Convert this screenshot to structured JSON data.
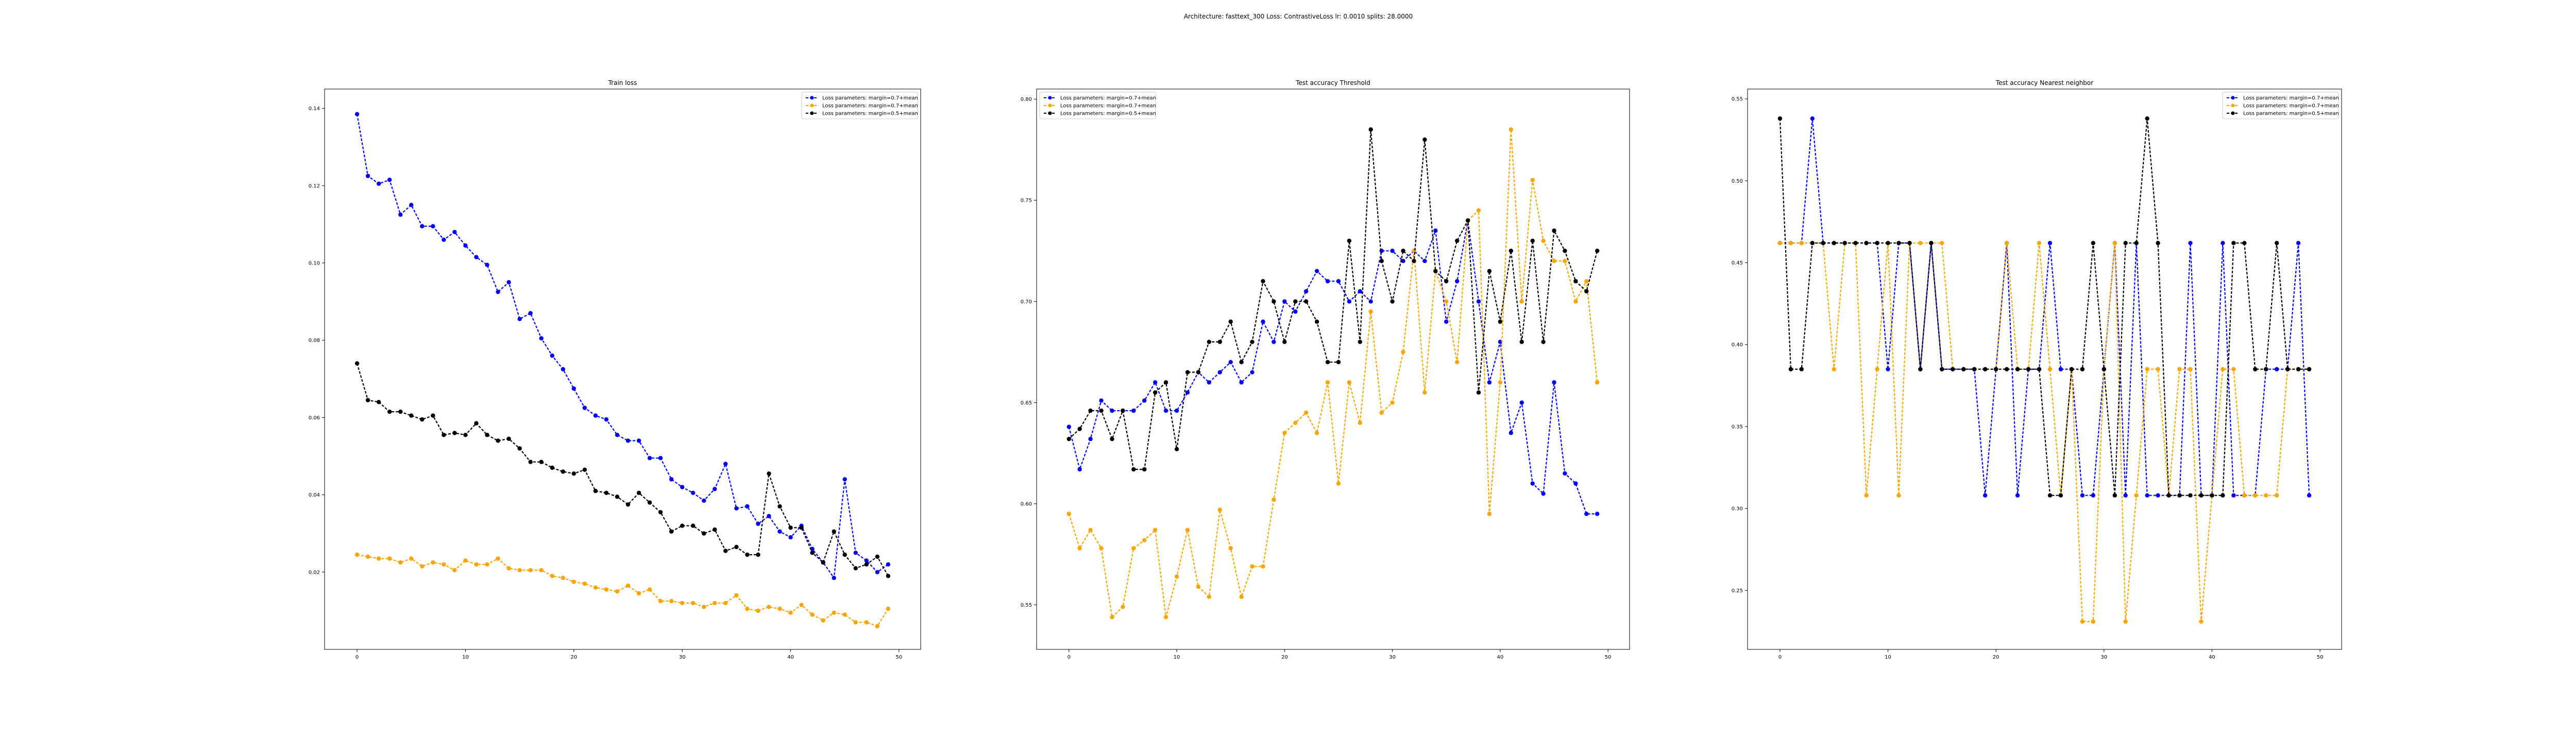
{
  "suptitle": "Architecture: fasttext_300 Loss: ContrastiveLoss lr: 0.0010 splits: 28.0000",
  "colors": {
    "blue": "#0000ff",
    "orange": "#ffa500",
    "black": "#000000"
  },
  "legend_labels": [
    "Loss parameters: margin=0.7+mean",
    "Loss parameters: margin=0.7+mean",
    "Loss parameters: margin=0.5+mean"
  ],
  "chart_data": [
    {
      "type": "line",
      "title": "Train loss",
      "xlabel": "",
      "ylabel": "",
      "xlim": [
        -3,
        52
      ],
      "ylim": [
        0.0,
        0.145
      ],
      "xticks": [
        0,
        10,
        20,
        30,
        40,
        50
      ],
      "yticks": [
        0.02,
        0.04,
        0.06,
        0.08,
        0.1,
        0.12,
        0.14
      ],
      "ytick_labels": [
        "0.02",
        "0.04",
        "0.06",
        "0.08",
        "0.10",
        "0.12",
        "0.14"
      ],
      "legend_position": "upper right",
      "x": [
        0,
        1,
        2,
        3,
        4,
        5,
        6,
        7,
        8,
        9,
        10,
        11,
        12,
        13,
        14,
        15,
        16,
        17,
        18,
        19,
        20,
        21,
        22,
        23,
        24,
        25,
        26,
        27,
        28,
        29,
        30,
        31,
        32,
        33,
        34,
        35,
        36,
        37,
        38,
        39,
        40,
        41,
        42,
        43,
        44,
        45,
        46,
        47,
        48,
        49
      ],
      "series": [
        {
          "color": "blue",
          "values": [
            0.1385,
            0.1225,
            0.1205,
            0.1215,
            0.1125,
            0.115,
            0.1095,
            0.1095,
            0.106,
            0.108,
            0.1045,
            0.1015,
            0.0995,
            0.0925,
            0.095,
            0.0855,
            0.087,
            0.0805,
            0.076,
            0.0725,
            0.0675,
            0.0625,
            0.0605,
            0.0595,
            0.0555,
            0.054,
            0.054,
            0.0495,
            0.0495,
            0.044,
            0.042,
            0.0405,
            0.0385,
            0.0415,
            0.048,
            0.0365,
            0.037,
            0.0325,
            0.0345,
            0.0305,
            0.029,
            0.032,
            0.026,
            0.0225,
            0.0185,
            0.044,
            0.025,
            0.023,
            0.02,
            0.022
          ]
        },
        {
          "color": "orange",
          "values": [
            0.0245,
            0.024,
            0.0235,
            0.0235,
            0.0225,
            0.0235,
            0.0215,
            0.0225,
            0.022,
            0.0205,
            0.023,
            0.022,
            0.022,
            0.0235,
            0.021,
            0.0205,
            0.0205,
            0.0205,
            0.019,
            0.0185,
            0.0175,
            0.017,
            0.016,
            0.0155,
            0.015,
            0.0165,
            0.0145,
            0.0155,
            0.0125,
            0.0125,
            0.012,
            0.012,
            0.011,
            0.012,
            0.012,
            0.014,
            0.0105,
            0.01,
            0.011,
            0.0105,
            0.0095,
            0.0115,
            0.009,
            0.0075,
            0.0095,
            0.009,
            0.007,
            0.007,
            0.006,
            0.0105
          ]
        },
        {
          "color": "black",
          "values": [
            0.074,
            0.0645,
            0.064,
            0.0615,
            0.0615,
            0.0605,
            0.0595,
            0.0605,
            0.0555,
            0.056,
            0.0555,
            0.0585,
            0.0555,
            0.054,
            0.0545,
            0.052,
            0.0485,
            0.0485,
            0.047,
            0.046,
            0.0455,
            0.0465,
            0.041,
            0.0405,
            0.0395,
            0.0375,
            0.0405,
            0.038,
            0.0355,
            0.0305,
            0.032,
            0.032,
            0.03,
            0.031,
            0.0255,
            0.0265,
            0.0245,
            0.0245,
            0.0455,
            0.037,
            0.0315,
            0.0315,
            0.025,
            0.0225,
            0.0305,
            0.0245,
            0.021,
            0.022,
            0.024,
            0.019
          ]
        }
      ]
    },
    {
      "type": "line",
      "title": "Test accuracy Threshold",
      "xlabel": "",
      "ylabel": "",
      "xlim": [
        -3,
        52
      ],
      "ylim": [
        0.528,
        0.805
      ],
      "xticks": [
        0,
        10,
        20,
        30,
        40,
        50
      ],
      "yticks": [
        0.55,
        0.6,
        0.65,
        0.7,
        0.75,
        0.8
      ],
      "ytick_labels": [
        "0.55",
        "0.60",
        "0.65",
        "0.70",
        "0.75",
        "0.80"
      ],
      "legend_position": "upper left",
      "x": [
        0,
        1,
        2,
        3,
        4,
        5,
        6,
        7,
        8,
        9,
        10,
        11,
        12,
        13,
        14,
        15,
        16,
        17,
        18,
        19,
        20,
        21,
        22,
        23,
        24,
        25,
        26,
        27,
        28,
        29,
        30,
        31,
        32,
        33,
        34,
        35,
        36,
        37,
        38,
        39,
        40,
        41,
        42,
        43,
        44,
        45,
        46,
        47,
        48,
        49
      ],
      "series": [
        {
          "color": "blue",
          "values": [
            0.638,
            0.617,
            0.632,
            0.651,
            0.646,
            0.646,
            0.646,
            0.651,
            0.66,
            0.646,
            0.646,
            0.655,
            0.665,
            0.66,
            0.665,
            0.67,
            0.66,
            0.665,
            0.69,
            0.68,
            0.7,
            0.695,
            0.705,
            0.715,
            0.71,
            0.71,
            0.7,
            0.705,
            0.7,
            0.725,
            0.725,
            0.72,
            0.725,
            0.72,
            0.735,
            0.69,
            0.71,
            0.74,
            0.7,
            0.66,
            0.68,
            0.635,
            0.65,
            0.61,
            0.605,
            0.66,
            0.615,
            0.61,
            0.595,
            0.595
          ]
        },
        {
          "color": "orange",
          "values": [
            0.595,
            0.578,
            0.587,
            0.578,
            0.544,
            0.549,
            0.578,
            0.582,
            0.587,
            0.544,
            0.564,
            0.587,
            0.559,
            0.554,
            0.597,
            0.578,
            0.554,
            0.569,
            0.569,
            0.602,
            0.635,
            0.64,
            0.645,
            0.635,
            0.66,
            0.61,
            0.66,
            0.64,
            0.695,
            0.645,
            0.65,
            0.675,
            0.725,
            0.655,
            0.715,
            0.7,
            0.67,
            0.74,
            0.745,
            0.595,
            0.66,
            0.785,
            0.7,
            0.76,
            0.73,
            0.72,
            0.72,
            0.7,
            0.71,
            0.66
          ]
        },
        {
          "color": "black",
          "values": [
            0.632,
            0.637,
            0.646,
            0.646,
            0.632,
            0.646,
            0.617,
            0.617,
            0.655,
            0.66,
            0.627,
            0.665,
            0.665,
            0.68,
            0.68,
            0.69,
            0.67,
            0.68,
            0.71,
            0.7,
            0.68,
            0.7,
            0.7,
            0.69,
            0.67,
            0.67,
            0.73,
            0.68,
            0.785,
            0.72,
            0.7,
            0.725,
            0.72,
            0.78,
            0.715,
            0.71,
            0.73,
            0.74,
            0.655,
            0.715,
            0.69,
            0.725,
            0.68,
            0.73,
            0.68,
            0.735,
            0.725,
            0.71,
            0.705,
            0.725
          ]
        }
      ]
    },
    {
      "type": "line",
      "title": "Test accuracy Nearest neighbor",
      "xlabel": "",
      "ylabel": "",
      "xlim": [
        -3,
        52
      ],
      "ylim": [
        0.214,
        0.556
      ],
      "xticks": [
        0,
        10,
        20,
        30,
        40,
        50
      ],
      "yticks": [
        0.25,
        0.3,
        0.35,
        0.4,
        0.45,
        0.5,
        0.55
      ],
      "ytick_labels": [
        "0.25",
        "0.30",
        "0.35",
        "0.40",
        "0.45",
        "0.50",
        "0.55"
      ],
      "legend_position": "upper right",
      "x": [
        0,
        1,
        2,
        3,
        4,
        5,
        6,
        7,
        8,
        9,
        10,
        11,
        12,
        13,
        14,
        15,
        16,
        17,
        18,
        19,
        20,
        21,
        22,
        23,
        24,
        25,
        26,
        27,
        28,
        29,
        30,
        31,
        32,
        33,
        34,
        35,
        36,
        37,
        38,
        39,
        40,
        41,
        42,
        43,
        44,
        45,
        46,
        47,
        48,
        49
      ],
      "series": [
        {
          "color": "blue",
          "values": [
            0.462,
            0.462,
            0.462,
            0.538,
            0.462,
            0.462,
            0.462,
            0.462,
            0.462,
            0.462,
            0.385,
            0.462,
            0.462,
            0.385,
            0.462,
            0.385,
            0.385,
            0.385,
            0.385,
            0.308,
            0.385,
            0.462,
            0.308,
            0.385,
            0.385,
            0.462,
            0.385,
            0.385,
            0.308,
            0.308,
            0.385,
            0.462,
            0.308,
            0.462,
            0.308,
            0.308,
            0.308,
            0.308,
            0.462,
            0.308,
            0.308,
            0.462,
            0.308,
            0.308,
            0.308,
            0.385,
            0.385,
            0.385,
            0.462,
            0.308
          ]
        },
        {
          "color": "orange",
          "values": [
            0.462,
            0.462,
            0.462,
            0.462,
            0.462,
            0.385,
            0.462,
            0.462,
            0.308,
            0.385,
            0.462,
            0.308,
            0.462,
            0.462,
            0.462,
            0.462,
            0.385,
            0.385,
            0.385,
            0.385,
            0.385,
            0.462,
            0.385,
            0.385,
            0.462,
            0.385,
            0.308,
            0.385,
            0.231,
            0.231,
            0.385,
            0.462,
            0.231,
            0.308,
            0.385,
            0.385,
            0.308,
            0.385,
            0.385,
            0.231,
            0.308,
            0.385,
            0.385,
            0.308,
            0.308,
            0.308,
            0.308,
            0.385,
            0.385,
            0.385
          ]
        },
        {
          "color": "black",
          "values": [
            0.538,
            0.385,
            0.385,
            0.462,
            0.462,
            0.462,
            0.462,
            0.462,
            0.462,
            0.462,
            0.462,
            0.462,
            0.462,
            0.385,
            0.462,
            0.385,
            0.385,
            0.385,
            0.385,
            0.385,
            0.385,
            0.385,
            0.385,
            0.385,
            0.385,
            0.308,
            0.308,
            0.385,
            0.385,
            0.462,
            0.385,
            0.308,
            0.462,
            0.462,
            0.538,
            0.462,
            0.308,
            0.308,
            0.308,
            0.308,
            0.308,
            0.308,
            0.462,
            0.462,
            0.385,
            0.385,
            0.462,
            0.385,
            0.385,
            0.385
          ]
        }
      ]
    }
  ]
}
